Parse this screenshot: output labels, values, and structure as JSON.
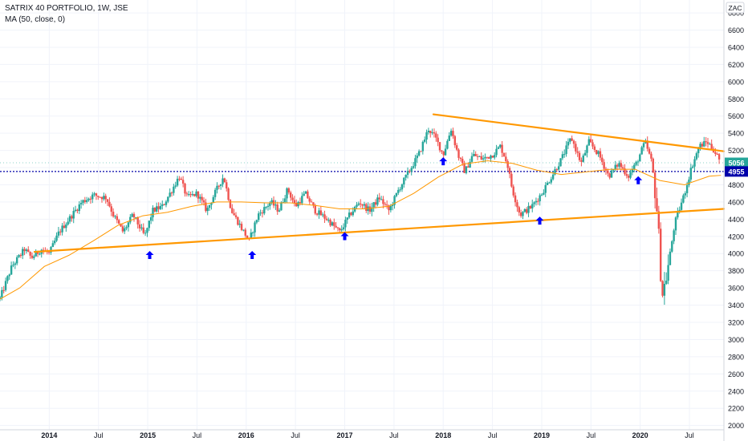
{
  "header": {
    "symbol": "SATRIX 40 PORTFOLIO, 1W, JSE",
    "indicator": "MA (50, close, 0)",
    "currency": "ZAC"
  },
  "price_labels": {
    "last_price": "5056",
    "reference_price": "4955"
  },
  "colors": {
    "up": "#26a69a",
    "down": "#ef5350",
    "ma": "#ff9800",
    "trendline": "#ff9800",
    "arrow": "#0000ff",
    "reference_line": "#0000aa",
    "last_price_bg": "#26a69a",
    "reference_bg": "#0000aa"
  },
  "chart_data": {
    "type": "candlestick",
    "title": "SATRIX 40 PORTFOLIO, 1W, JSE",
    "y_axis": {
      "ylim": [
        1950,
        6950
      ],
      "ticks": [
        2000,
        2200,
        2400,
        2600,
        2800,
        3000,
        3200,
        3400,
        3600,
        3800,
        4000,
        4200,
        4400,
        4600,
        4800,
        5000,
        5200,
        5400,
        5600,
        5800,
        6000,
        6200,
        6400,
        6600,
        6800
      ],
      "unit": "ZAC",
      "position": "right"
    },
    "x_axis": {
      "ticks": [
        {
          "label": "2014",
          "t": 2014.0
        },
        {
          "label": "Jul",
          "t": 2014.5
        },
        {
          "label": "2015",
          "t": 2015.0
        },
        {
          "label": "Jul",
          "t": 2015.5
        },
        {
          "label": "2016",
          "t": 2016.0
        },
        {
          "label": "Jul",
          "t": 2016.5
        },
        {
          "label": "2017",
          "t": 2017.0
        },
        {
          "label": "Jul",
          "t": 2017.5
        },
        {
          "label": "2018",
          "t": 2018.0
        },
        {
          "label": "Jul",
          "t": 2018.5
        },
        {
          "label": "2019",
          "t": 2019.0
        },
        {
          "label": "Jul",
          "t": 2019.5
        },
        {
          "label": "2020",
          "t": 2020.0
        },
        {
          "label": "Jul",
          "t": 2020.5
        }
      ],
      "range": [
        2013.5,
        2020.85
      ]
    },
    "price_path": [
      [
        2013.5,
        3480
      ],
      [
        2013.62,
        3850
      ],
      [
        2013.75,
        4050
      ],
      [
        2013.82,
        3950
      ],
      [
        2013.92,
        4050
      ],
      [
        2014.0,
        4000
      ],
      [
        2014.1,
        4250
      ],
      [
        2014.2,
        4400
      ],
      [
        2014.33,
        4600
      ],
      [
        2014.45,
        4680
      ],
      [
        2014.58,
        4650
      ],
      [
        2014.65,
        4450
      ],
      [
        2014.75,
        4250
      ],
      [
        2014.85,
        4450
      ],
      [
        2014.97,
        4200
      ],
      [
        2015.05,
        4500
      ],
      [
        2015.15,
        4550
      ],
      [
        2015.25,
        4750
      ],
      [
        2015.32,
        4900
      ],
      [
        2015.4,
        4650
      ],
      [
        2015.5,
        4700
      ],
      [
        2015.6,
        4500
      ],
      [
        2015.68,
        4700
      ],
      [
        2015.77,
        4900
      ],
      [
        2015.85,
        4500
      ],
      [
        2015.95,
        4300
      ],
      [
        2016.03,
        4150
      ],
      [
        2016.12,
        4450
      ],
      [
        2016.25,
        4600
      ],
      [
        2016.33,
        4500
      ],
      [
        2016.42,
        4750
      ],
      [
        2016.5,
        4550
      ],
      [
        2016.6,
        4700
      ],
      [
        2016.7,
        4500
      ],
      [
        2016.82,
        4400
      ],
      [
        2016.95,
        4250
      ],
      [
        2017.05,
        4450
      ],
      [
        2017.15,
        4600
      ],
      [
        2017.25,
        4500
      ],
      [
        2017.35,
        4650
      ],
      [
        2017.45,
        4500
      ],
      [
        2017.55,
        4750
      ],
      [
        2017.65,
        4950
      ],
      [
        2017.75,
        5150
      ],
      [
        2017.85,
        5450
      ],
      [
        2017.92,
        5350
      ],
      [
        2018.0,
        5150
      ],
      [
        2018.08,
        5450
      ],
      [
        2018.15,
        5150
      ],
      [
        2018.22,
        4950
      ],
      [
        2018.3,
        5150
      ],
      [
        2018.4,
        5100
      ],
      [
        2018.5,
        5150
      ],
      [
        2018.58,
        5250
      ],
      [
        2018.65,
        5050
      ],
      [
        2018.7,
        4750
      ],
      [
        2018.78,
        4450
      ],
      [
        2018.9,
        4550
      ],
      [
        2019.0,
        4700
      ],
      [
        2019.1,
        4900
      ],
      [
        2019.2,
        5100
      ],
      [
        2019.3,
        5350
      ],
      [
        2019.4,
        5050
      ],
      [
        2019.48,
        5300
      ],
      [
        2019.58,
        5150
      ],
      [
        2019.68,
        4900
      ],
      [
        2019.78,
        5050
      ],
      [
        2019.88,
        4900
      ],
      [
        2019.96,
        5050
      ],
      [
        2020.05,
        5300
      ],
      [
        2020.12,
        5050
      ],
      [
        2020.18,
        4400
      ],
      [
        2020.22,
        3500
      ],
      [
        2020.27,
        3750
      ],
      [
        2020.35,
        4350
      ],
      [
        2020.45,
        4700
      ],
      [
        2020.52,
        5000
      ],
      [
        2020.6,
        5250
      ],
      [
        2020.68,
        5300
      ],
      [
        2020.75,
        5200
      ],
      [
        2020.82,
        5056
      ]
    ],
    "moving_average": {
      "name": "MA (50, close, 0)",
      "points": [
        [
          2013.5,
          3470
        ],
        [
          2013.7,
          3600
        ],
        [
          2013.95,
          3850
        ],
        [
          2014.2,
          3980
        ],
        [
          2014.45,
          4150
        ],
        [
          2014.7,
          4330
        ],
        [
          2014.95,
          4440
        ],
        [
          2015.2,
          4480
        ],
        [
          2015.45,
          4550
        ],
        [
          2015.7,
          4600
        ],
        [
          2015.95,
          4600
        ],
        [
          2016.2,
          4590
        ],
        [
          2016.45,
          4590
        ],
        [
          2016.7,
          4560
        ],
        [
          2016.95,
          4520
        ],
        [
          2017.2,
          4520
        ],
        [
          2017.45,
          4550
        ],
        [
          2017.7,
          4700
        ],
        [
          2017.95,
          4890
        ],
        [
          2018.2,
          5040
        ],
        [
          2018.45,
          5080
        ],
        [
          2018.7,
          5050
        ],
        [
          2018.95,
          4970
        ],
        [
          2019.2,
          4920
        ],
        [
          2019.45,
          4950
        ],
        [
          2019.7,
          4980
        ],
        [
          2019.95,
          4980
        ],
        [
          2020.2,
          4850
        ],
        [
          2020.45,
          4800
        ],
        [
          2020.7,
          4900
        ],
        [
          2020.82,
          4910
        ]
      ]
    },
    "trendlines": [
      {
        "from": [
          2013.85,
          4020
        ],
        "to": [
          2020.85,
          4520
        ]
      },
      {
        "from": [
          2017.9,
          5620
        ],
        "to": [
          2020.85,
          5190
        ]
      }
    ],
    "arrows_up": [
      {
        "t": 2015.02,
        "price": 4030
      },
      {
        "t": 2016.06,
        "price": 4030
      },
      {
        "t": 2017.0,
        "price": 4250
      },
      {
        "t": 2018.0,
        "price": 5120
      },
      {
        "t": 2018.98,
        "price": 4430
      },
      {
        "t": 2019.98,
        "price": 4900
      }
    ],
    "horizontal_lines": [
      {
        "price": 4955,
        "style": "dotted"
      },
      {
        "price": 5056,
        "style": "dotted-light"
      }
    ]
  }
}
